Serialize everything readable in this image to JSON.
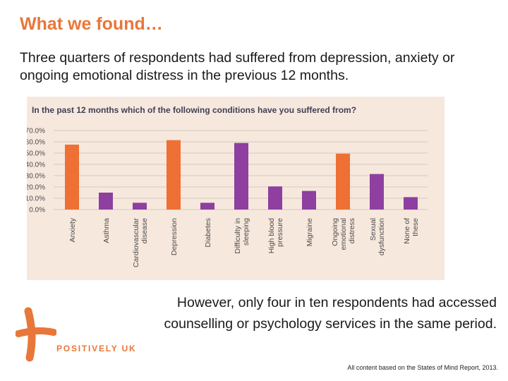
{
  "slide": {
    "title": "What we found…",
    "intro": "Three quarters of respondents had suffered from depression, anxiety or ongoing emotional distress in the previous 12 months.",
    "finding": "However, only four in ten respondents had accessed counselling or psychology services in the same period.",
    "source": "All content based on the States of Mind Report, 2013.",
    "logo_text": "POSITIVELY UK"
  },
  "colors": {
    "accent": "#e8773a",
    "bar_orange": "#ee7034",
    "bar_purple": "#8e3fa0",
    "panel": "#f7e8dd"
  },
  "chart_data": {
    "type": "bar",
    "title": "In the past 12 months which of the following conditions have you suffered from?",
    "categories": [
      [
        "Anxiety"
      ],
      [
        "Asthma"
      ],
      [
        "Cardiovascular",
        "disease"
      ],
      [
        "Depression"
      ],
      [
        "Diabetes"
      ],
      [
        "Difficulty in",
        "sleeping"
      ],
      [
        "High blood",
        "pressure"
      ],
      [
        "Migraine"
      ],
      [
        "Ongoing",
        "emotional",
        "distress"
      ],
      [
        "Sexual",
        "dysfunction"
      ],
      [
        "None of",
        "these"
      ]
    ],
    "values": [
      57.5,
      15,
      6,
      61.5,
      6,
      59,
      20.5,
      16.5,
      49.5,
      31.5,
      11
    ],
    "bar_colors": [
      "orange",
      "purple",
      "purple",
      "orange",
      "purple",
      "purple",
      "purple",
      "purple",
      "orange",
      "purple",
      "purple"
    ],
    "y_ticks": [
      "0.0%",
      "10.0%",
      "20.0%",
      "30.0%",
      "40.0%",
      "50.0%",
      "60.0%",
      "70.0%"
    ],
    "ylim": [
      0,
      70
    ],
    "grid": true,
    "xlabel": "",
    "ylabel": ""
  }
}
